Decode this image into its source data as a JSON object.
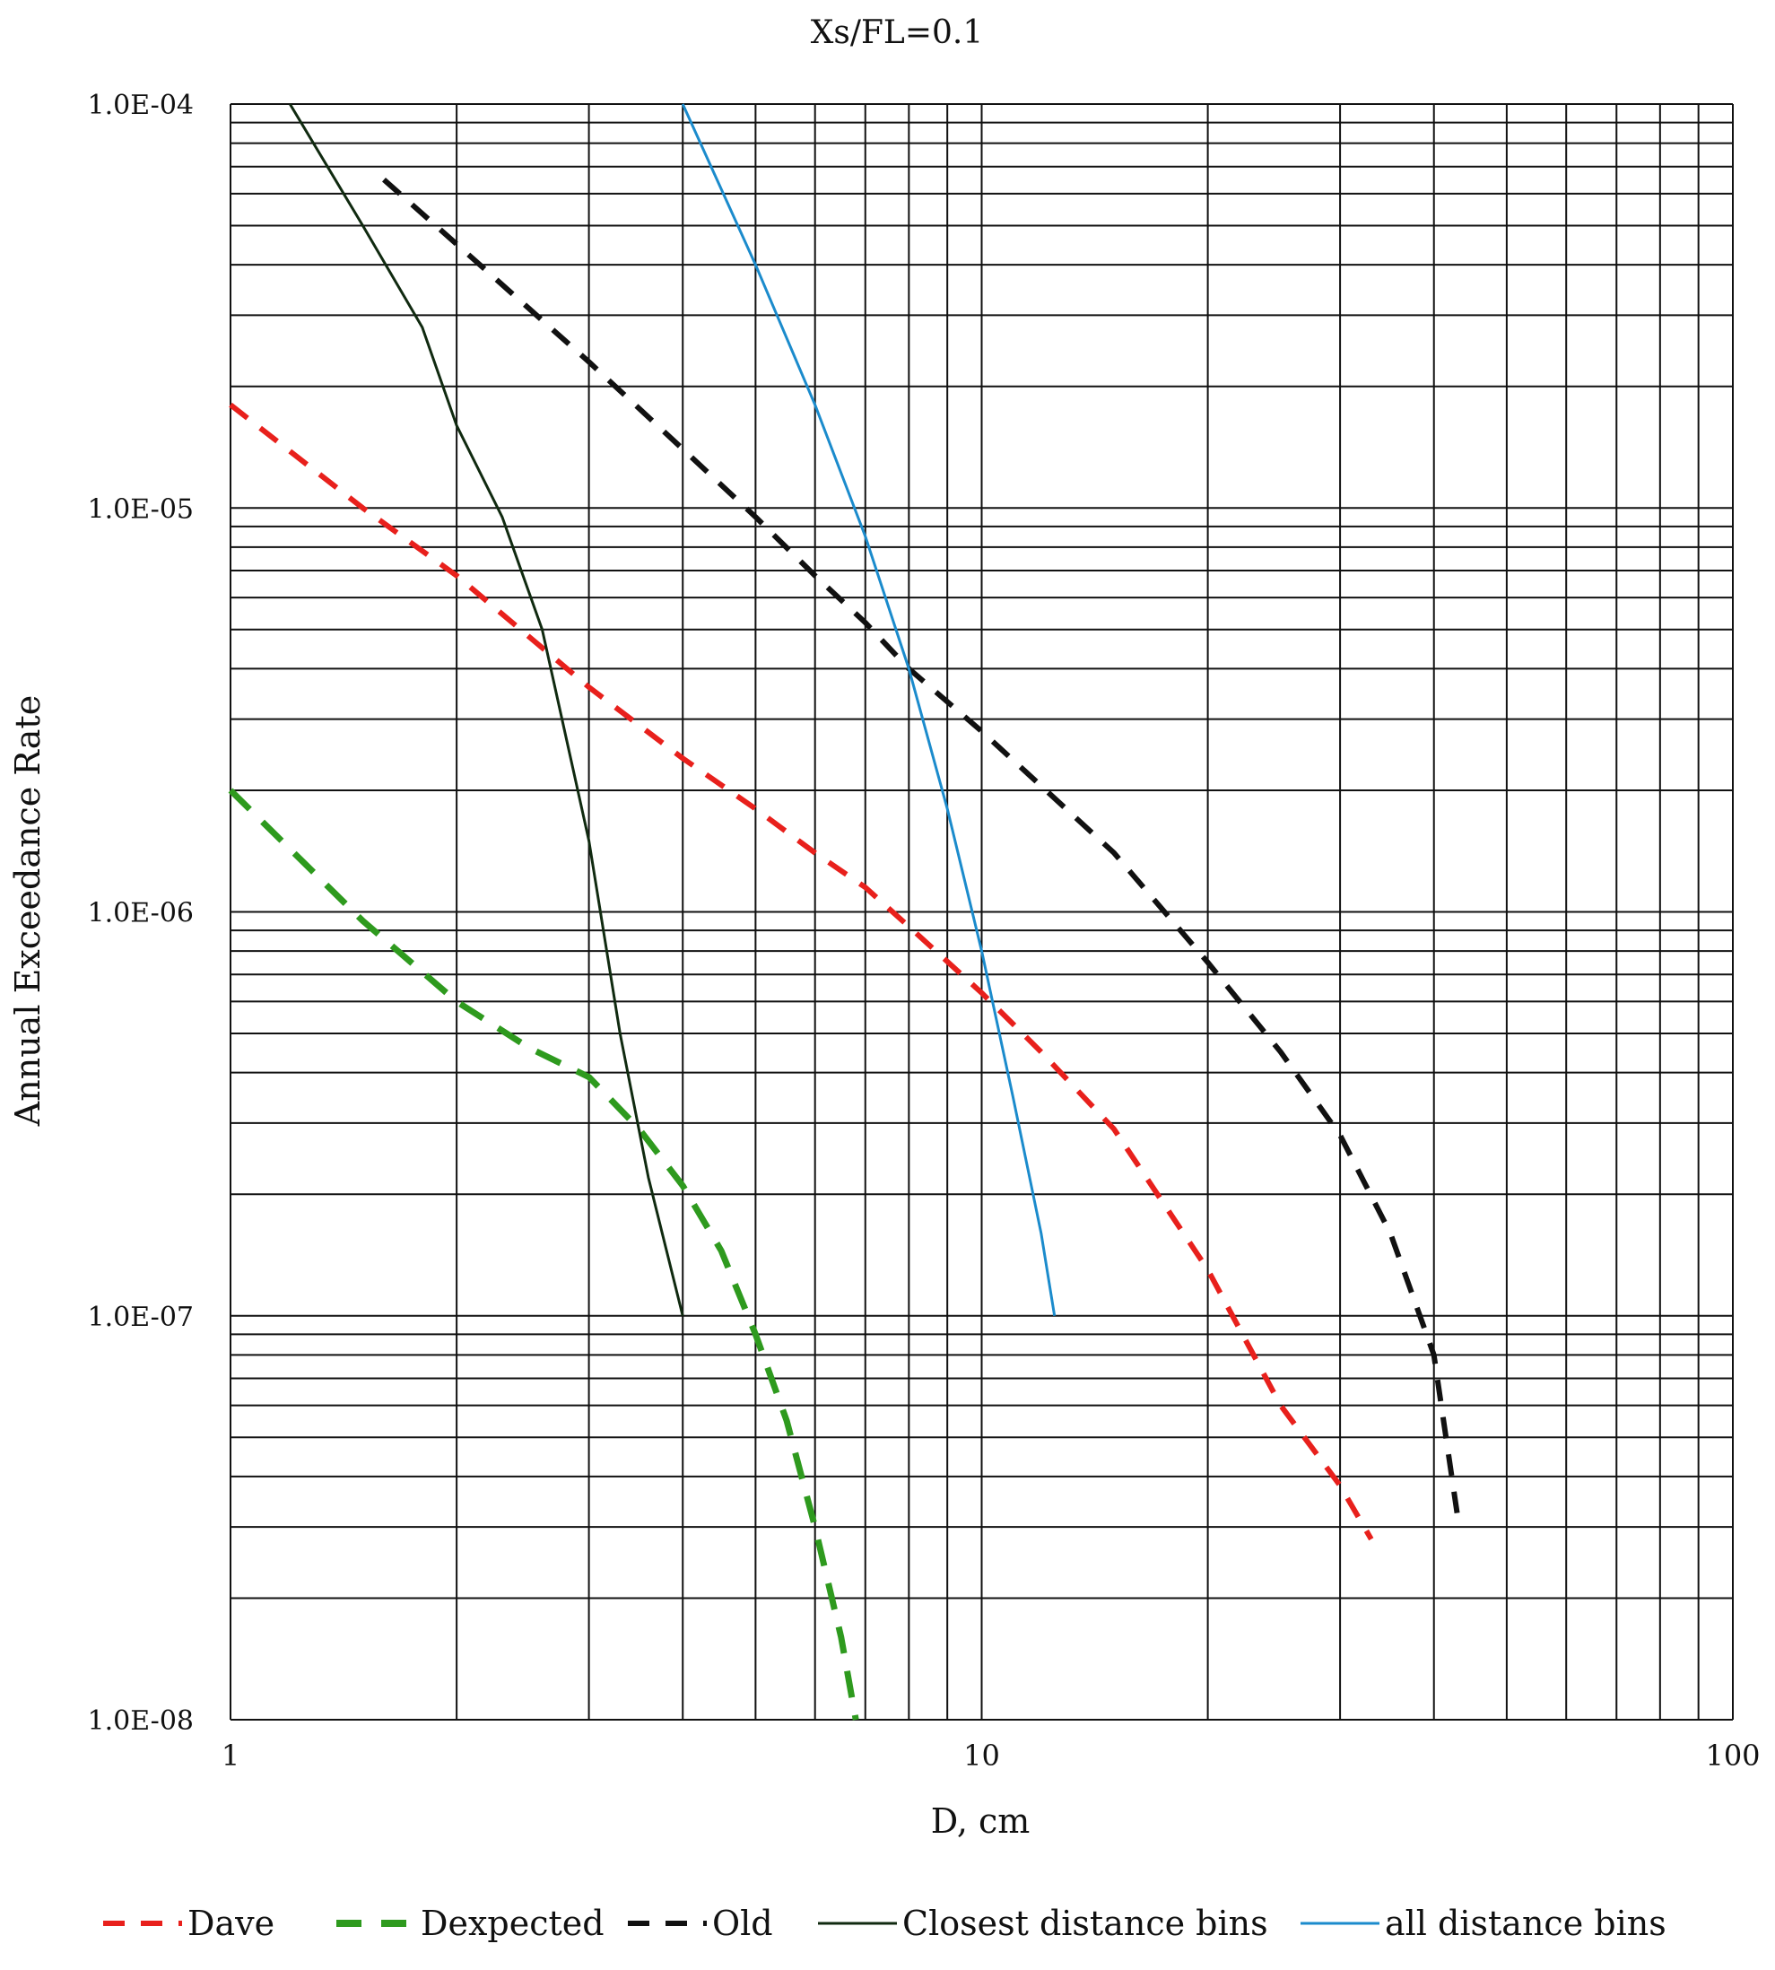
{
  "chart_data": {
    "type": "line",
    "title": "Xs/FL=0.1",
    "xlabel": "D, cm",
    "ylabel": "Annual Exceedance Rate",
    "x_scale": "log",
    "y_scale": "log",
    "xlim": [
      1,
      100
    ],
    "ylim": [
      1e-08,
      0.0001
    ],
    "grid": true,
    "legend_position": "bottom",
    "x_tick_labels": [
      "1",
      "10",
      "100"
    ],
    "x_tick_values": [
      1,
      10,
      100
    ],
    "y_tick_labels": [
      "1.0E-04",
      "1.0E-05",
      "1.0E-06",
      "1.0E-07",
      "1.0E-08"
    ],
    "y_tick_values": [
      0.0001,
      1e-05,
      1e-06,
      1e-07,
      1e-08
    ],
    "series": [
      {
        "name": "Dave",
        "color": "#e8201c",
        "style": "dashed",
        "points": [
          [
            1.0,
            1.8e-05
          ],
          [
            1.5,
            1e-05
          ],
          [
            2.0,
            6.8e-06
          ],
          [
            3.0,
            3.6e-06
          ],
          [
            4.0,
            2.4e-06
          ],
          [
            5.0,
            1.8e-06
          ],
          [
            6.0,
            1.4e-06
          ],
          [
            7.0,
            1.15e-06
          ],
          [
            8.0,
            9.2e-07
          ],
          [
            10.0,
            6.3e-07
          ],
          [
            12.0,
            4.5e-07
          ],
          [
            15.0,
            2.9e-07
          ],
          [
            20.0,
            1.3e-07
          ],
          [
            25.0,
            6e-08
          ],
          [
            30.0,
            3.8e-08
          ],
          [
            33.0,
            2.8e-08
          ]
        ]
      },
      {
        "name": "Dexpected",
        "color": "#2e9a1e",
        "style": "dashed",
        "points": [
          [
            1.0,
            2e-06
          ],
          [
            1.5,
            9.5e-07
          ],
          [
            2.0,
            6e-07
          ],
          [
            2.5,
            4.6e-07
          ],
          [
            3.0,
            3.9e-07
          ],
          [
            3.5,
            2.9e-07
          ],
          [
            4.0,
            2.1e-07
          ],
          [
            4.5,
            1.45e-07
          ],
          [
            5.0,
            9e-08
          ],
          [
            5.5,
            5.5e-08
          ],
          [
            6.0,
            3e-08
          ],
          [
            6.5,
            1.6e-08
          ],
          [
            6.8,
            1e-08
          ]
        ]
      },
      {
        "name": "Old",
        "color": "#111111",
        "style": "dashed",
        "points": [
          [
            1.6,
            6.5e-05
          ],
          [
            2.0,
            4.5e-05
          ],
          [
            3.0,
            2.3e-05
          ],
          [
            4.0,
            1.4e-05
          ],
          [
            5.0,
            9.5e-06
          ],
          [
            6.0,
            6.8e-06
          ],
          [
            7.0,
            5.2e-06
          ],
          [
            8.0,
            4e-06
          ],
          [
            10.0,
            2.8e-06
          ],
          [
            15.0,
            1.4e-06
          ],
          [
            20.0,
            7.5e-07
          ],
          [
            25.0,
            4.5e-07
          ],
          [
            30.0,
            2.8e-07
          ],
          [
            35.0,
            1.6e-07
          ],
          [
            40.0,
            8e-08
          ],
          [
            43.0,
            3.2e-08
          ]
        ]
      },
      {
        "name": "Closest distance bins",
        "color": "#102a10",
        "style": "solid",
        "points": [
          [
            1.2,
            0.0001
          ],
          [
            1.5,
            5e-05
          ],
          [
            1.8,
            2.8e-05
          ],
          [
            2.0,
            1.6e-05
          ],
          [
            2.3,
            9.5e-06
          ],
          [
            2.6,
            5e-06
          ],
          [
            3.0,
            1.5e-06
          ],
          [
            3.3,
            5e-07
          ],
          [
            3.6,
            2.2e-07
          ],
          [
            4.0,
            1e-07
          ]
        ]
      },
      {
        "name": "all distance bins",
        "color": "#1b8bcc",
        "style": "solid",
        "points": [
          [
            4.0,
            0.0001
          ],
          [
            5.0,
            4e-05
          ],
          [
            6.0,
            1.8e-05
          ],
          [
            7.0,
            8.5e-06
          ],
          [
            8.0,
            4e-06
          ],
          [
            9.0,
            1.8e-06
          ],
          [
            10.0,
            8e-07
          ],
          [
            11.0,
            3.5e-07
          ],
          [
            12.0,
            1.6e-07
          ],
          [
            12.5,
            1e-07
          ]
        ]
      }
    ]
  }
}
